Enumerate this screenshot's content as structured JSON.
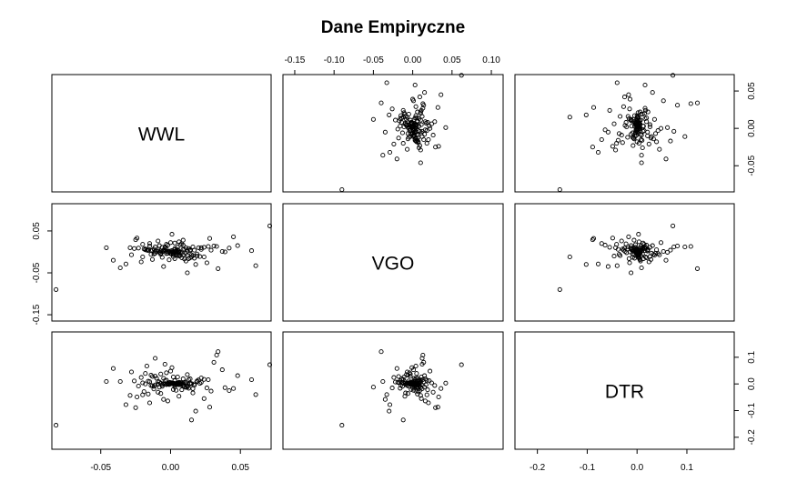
{
  "chart_data": {
    "type": "scatter",
    "subtype": "scatterplot-matrix",
    "title": "Dane Empiryczne",
    "variables": [
      "WWL",
      "VGO",
      "DTR"
    ],
    "axes": {
      "WWL": {
        "range": [
          -0.085,
          0.072
        ],
        "ticks": [
          -0.05,
          0.0,
          0.05
        ],
        "tick_labels": [
          "-0.05",
          "0.00",
          "0.05"
        ]
      },
      "VGO": {
        "range": [
          -0.165,
          0.115
        ],
        "ticks": [
          -0.15,
          -0.1,
          -0.05,
          0.0,
          0.05,
          0.1
        ],
        "tick_labels": [
          "-0.15",
          "-0.10",
          "-0.05",
          "0.00",
          "0.05",
          "0.10"
        ],
        "row_ticks": [
          -0.15,
          -0.05,
          0.05
        ],
        "row_tick_labels": [
          "-0.15",
          "-0.05",
          "0.05"
        ]
      },
      "DTR": {
        "range": [
          -0.245,
          0.195
        ],
        "ticks": [
          -0.2,
          -0.1,
          0.0,
          0.1
        ],
        "tick_labels": [
          "-0.2",
          "-0.1",
          "0.0",
          "0.1"
        ],
        "row_ticks": [
          -0.2,
          -0.1,
          0.0,
          0.1
        ],
        "row_tick_labels": [
          "-0.2",
          "-0.1",
          "0.0",
          "0.1"
        ]
      }
    },
    "tick_placement": {
      "top": {
        "panel_column": 1,
        "variable": "VGO",
        "ticks": [
          -0.15,
          -0.1,
          -0.05,
          0.0,
          0.05,
          0.1
        ],
        "tick_labels": [
          "-0.15",
          "-0.10",
          "-0.05",
          "0.00",
          "0.05",
          "0.10"
        ]
      },
      "bottom_left": {
        "panel_column": 0,
        "variable": "WWL",
        "ticks": [
          -0.05,
          0.0,
          0.05
        ],
        "tick_labels": [
          "-0.05",
          "0.00",
          "0.05"
        ]
      },
      "bottom_right": {
        "panel_column": 2,
        "variable": "DTR",
        "ticks": [
          -0.2,
          -0.1,
          0.0,
          0.1
        ],
        "tick_labels": [
          "-0.2",
          "-0.1",
          "0.0",
          "0.1"
        ]
      },
      "left": {
        "panel_row": 1,
        "variable": "VGO",
        "ticks": [
          -0.15,
          -0.05,
          0.05
        ],
        "tick_labels": [
          "-0.15",
          "-0.05",
          "0.05"
        ]
      },
      "right_top": {
        "panel_row": 0,
        "variable": "WWL",
        "ticks": [
          -0.05,
          0.0,
          0.05
        ],
        "tick_labels": [
          "-0.05",
          "0.00",
          "0.05"
        ]
      },
      "right_bottom": {
        "panel_row": 2,
        "variable": "DTR",
        "ticks": [
          -0.2,
          -0.1,
          0.0,
          0.1
        ],
        "tick_labels": [
          "-0.2",
          "-0.1",
          "0.0",
          "0.1"
        ]
      }
    },
    "points": {
      "WWL": [
        0.071,
        -0.082,
        -0.046,
        0.061,
        -0.032,
        0.048,
        0.034,
        0.028,
        0.058,
        -0.041,
        -0.02,
        0.012,
        -0.011,
        0.015,
        0.022,
        -0.005,
        0.006,
        -0.017,
        0.042,
        -0.028,
        -0.015,
        0.003,
        0.009,
        -0.007,
        0.018,
        0.031,
        -0.012,
        0.002,
        -0.024,
        0.011,
        0.037,
        -0.009,
        0.005,
        -0.002,
        0.014,
        -0.018,
        0.026,
        -0.004,
        0.008,
        0.019,
        -0.029,
        -0.013,
        0.004,
        0.016,
        0.0,
        -0.006,
        0.013,
        0.024,
        -0.014,
        0.007,
        -0.021,
        0.029,
        0.001,
        -0.008,
        0.01,
        -0.016,
        0.02,
        -0.003,
        0.045,
        -0.036,
        -0.025,
        0.033,
        0.006,
        -0.01,
        0.017,
        0.003,
        -0.019,
        0.012,
        0.001,
        0.039,
        0.005,
        0.002,
        -0.015,
        0.024,
        -0.023,
        0.014,
        -0.007,
        0.009,
        -0.001,
        0.003,
        -0.011,
        0.016,
        -0.026,
        0.021,
        0.004,
        -0.003,
        0.009,
        -0.005,
        0.008,
        0.011,
        -0.009,
        0.007,
        0.027,
        -0.012,
        0.006,
        -0.018,
        0.013,
        -0.004,
        0.002,
        -0.013,
        0.019,
        -0.006,
        0.0,
        0.01,
        -0.016,
        0.015,
        0.003,
        -0.008,
        0.005,
        -0.02,
        0.012,
        -0.002,
        0.022,
        -0.011,
        0.001,
        0.017,
        -0.003,
        0.007,
        -0.014,
        0.004,
        0.009,
        -0.006,
        0.0,
        0.014,
        -0.009,
        0.002,
        0.005,
        -0.001,
        0.011,
        -0.004,
        0.006,
        -0.007,
        0.003,
        0.008,
        -0.002,
        0.001,
        0.004,
        -0.005,
        0.002,
        0.007,
        -0.003,
        0.0,
        0.005,
        -0.001,
        0.003
      ],
      "VGO": [
        0.062,
        -0.09,
        0.01,
        -0.033,
        -0.029,
        0.015,
        -0.04,
        0.032,
        0.003,
        -0.02,
        0.018,
        -0.05,
        0.012,
        -0.012,
        0.006,
        -0.035,
        0.024,
        0.004,
        0.009,
        -0.007,
        0.02,
        -0.016,
        0.028,
        -0.003,
        -0.03,
        0.014,
        0.007,
        -0.011,
        0.033,
        -0.022,
        0.001,
        0.026,
        -0.008,
        0.016,
        -0.014,
        0.005,
        -0.026,
        0.012,
        0.019,
        -0.005,
        0.01,
        -0.018,
        0.003,
        -0.009,
        0.022,
        -0.013,
        0.008,
        0.011,
        -0.006,
        0.017,
        -0.024,
        0.004,
        -0.001,
        0.015,
        -0.017,
        0.006,
        0.01,
        -0.004,
        0.036,
        -0.038,
        0.029,
        0.013,
        -0.01,
        0.002,
        -0.015,
        0.021,
        0.007,
        -0.008,
        0.042,
        0.0,
        0.011,
        -0.002,
        0.014,
        -0.012,
        0.009,
        0.003,
        -0.006,
        0.016,
        -0.019,
        0.005,
        -0.003,
        0.012,
        0.008,
        -0.011,
        0.001,
        0.018,
        -0.007,
        0.004,
        -0.014,
        0.01,
        0.006,
        -0.009,
        0.013,
        -0.005,
        0.002,
        0.007,
        -0.016,
        0.009,
        -0.002,
        0.004,
        -0.01,
        0.011,
        -0.004,
        0.006,
        0.003,
        -0.007,
        0.008,
        -0.001,
        0.005,
        -0.012,
        0.002,
        -0.003,
        0.01,
        0.001,
        -0.006,
        0.004,
        0.007,
        -0.002,
        0.003,
        -0.008,
        0.006,
        0.0,
        -0.004,
        0.005,
        0.002,
        -0.005,
        0.003,
        0.001,
        -0.003,
        0.004,
        -0.001,
        0.002,
        0.0,
        -0.002,
        0.001,
        0.003,
        -0.004,
        0.002,
        0.0,
        -0.001,
        0.001,
        0.002,
        -0.002,
        0.0,
        0.001
      ],
      "DTR": [
        0.072,
        -0.155,
        0.009,
        -0.04,
        -0.078,
        0.031,
        0.121,
        -0.087,
        0.016,
        0.058,
        -0.041,
        -0.012,
        0.096,
        -0.135,
        0.022,
        -0.058,
        0.004,
        0.067,
        -0.025,
        0.045,
        -0.071,
        0.013,
        -0.006,
        0.037,
        -0.102,
        0.081,
        -0.019,
        0.026,
        -0.049,
        0.007,
        0.053,
        -0.031,
        0.002,
        -0.064,
        0.019,
        0.039,
        -0.015,
        0.074,
        -0.022,
        0.011,
        -0.043,
        0.028,
        0.001,
        -0.034,
        0.048,
        -0.009,
        0.016,
        -0.055,
        0.033,
        -0.003,
        0.024,
        -0.027,
        0.061,
        -0.012,
        0.005,
        -0.038,
        0.015,
        0.042,
        -0.017,
        0.009,
        -0.089,
        0.108,
        -0.046,
        0.021,
        -0.005,
        0.012,
        -0.029,
        0.035,
        0.003,
        -0.014,
        0.026,
        -0.021,
        0.008,
        0.017,
        -0.008,
        0.003,
        -0.036,
        0.019,
        0.006,
        -0.011,
        0.029,
        -0.018,
        0.011,
        0.002,
        -0.024,
        0.014,
        -0.006,
        0.021,
        0.004,
        -0.013,
        0.009,
        -0.002,
        0.016,
        -0.009,
        0.006,
        0.0,
        -0.016,
        0.012,
        0.003,
        -0.007,
        0.008,
        -0.003,
        0.005,
        -0.011,
        0.01,
        0.001,
        -0.005,
        0.007,
        -0.001,
        0.004,
        -0.008,
        0.002,
        0.006,
        -0.004,
        0.003,
        0.0,
        -0.002,
        0.005,
        -0.006,
        0.002,
        0.001,
        -0.003,
        0.004,
        0.0,
        -0.001,
        0.002,
        0.003,
        -0.002,
        0.001,
        0.0,
        -0.003,
        0.002,
        0.001,
        -0.001,
        0.0,
        0.002,
        -0.001,
        0.001,
        0.0,
        0.001,
        -0.002,
        0.0,
        0.001,
        0.0,
        -0.001
      ]
    }
  }
}
